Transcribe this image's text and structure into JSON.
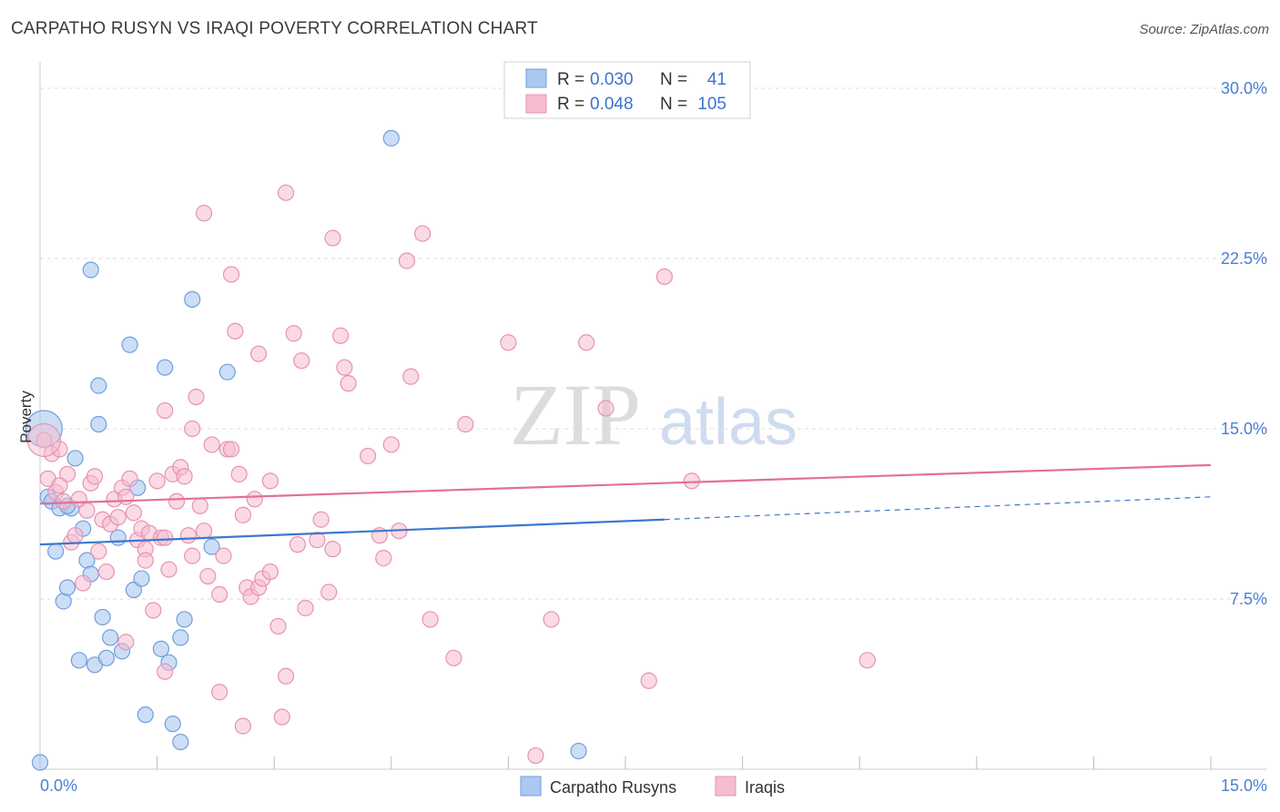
{
  "header": {
    "title": "CARPATHO RUSYN VS IRAQI POVERTY CORRELATION CHART",
    "source": "Source: ZipAtlas.com"
  },
  "watermark": {
    "zip": "ZIP",
    "atlas": "atlas"
  },
  "colors": {
    "blue_fill": "#aac8f0",
    "blue_stroke": "#6f9fdc",
    "blue_line": "#3a78d0",
    "pink_fill": "#f6bcd0",
    "pink_stroke": "#e693b0",
    "pink_line": "#e46f98",
    "tick_label": "#4a7fd4",
    "grid": "#dddddd"
  },
  "chart_data": {
    "type": "scatter",
    "xlabel": "",
    "ylabel": "Poverty",
    "xlim": [
      0,
      15
    ],
    "ylim": [
      0,
      30
    ],
    "x_ticks": [
      0,
      1.5,
      3,
      4.5,
      6,
      7.5,
      9,
      10.5,
      12,
      13.5,
      15
    ],
    "x_tick_labels": [
      {
        "value": 0,
        "label": "0.0%"
      },
      {
        "value": 15,
        "label": "15.0%"
      }
    ],
    "y_tick_labels": [
      {
        "value": 7.5,
        "label": "7.5%"
      },
      {
        "value": 15,
        "label": "15.0%"
      },
      {
        "value": 22.5,
        "label": "22.5%"
      },
      {
        "value": 30,
        "label": "30.0%"
      }
    ],
    "grid": true,
    "legend_position": "top-center",
    "legend": [
      {
        "series": "Carpatho Rusyns",
        "r_label": "R =",
        "r": "0.030",
        "n_label": "N =",
        "n": "41"
      },
      {
        "series": "Iraqis",
        "r_label": "R =",
        "r": "0.048",
        "n_label": "N =",
        "n": "105"
      }
    ],
    "series": [
      {
        "name": "Carpatho Rusyns",
        "color": "#aac8f0",
        "trend": {
          "x0": 0,
          "y0": 9.9,
          "x1": 8.0,
          "y1": 11.0,
          "dash_x1": 15,
          "dash_y1": 12.0
        },
        "points": [
          [
            0.05,
            15.0
          ],
          [
            0.1,
            12.0
          ],
          [
            0.15,
            11.8
          ],
          [
            0.2,
            9.6
          ],
          [
            0.25,
            11.5
          ],
          [
            0.3,
            7.4
          ],
          [
            0.35,
            8.0
          ],
          [
            0.4,
            11.5
          ],
          [
            0.45,
            13.7
          ],
          [
            0.5,
            4.8
          ],
          [
            0.55,
            10.6
          ],
          [
            0.6,
            9.2
          ],
          [
            0.65,
            8.6
          ],
          [
            0.7,
            4.6
          ],
          [
            0.75,
            16.9
          ],
          [
            0.8,
            6.7
          ],
          [
            0.85,
            4.9
          ],
          [
            0.9,
            5.8
          ],
          [
            1.0,
            10.2
          ],
          [
            1.05,
            5.2
          ],
          [
            1.15,
            18.7
          ],
          [
            1.2,
            7.9
          ],
          [
            1.3,
            8.4
          ],
          [
            1.35,
            2.4
          ],
          [
            1.55,
            5.3
          ],
          [
            1.6,
            17.7
          ],
          [
            1.65,
            4.7
          ],
          [
            1.7,
            2.0
          ],
          [
            1.8,
            5.8
          ],
          [
            1.85,
            6.6
          ],
          [
            1.95,
            20.7
          ],
          [
            2.2,
            9.8
          ],
          [
            2.4,
            17.5
          ],
          [
            0.35,
            11.6
          ],
          [
            1.8,
            1.2
          ],
          [
            1.25,
            12.4
          ],
          [
            0.65,
            22.0
          ],
          [
            0.75,
            15.2
          ],
          [
            4.5,
            27.8
          ],
          [
            6.9,
            0.8
          ],
          [
            0.0,
            0.3
          ]
        ]
      },
      {
        "name": "Iraqis",
        "color": "#f6bcd0",
        "trend": {
          "x0": 0,
          "y0": 11.7,
          "x1": 15,
          "y1": 13.4
        },
        "points": [
          [
            0.05,
            14.5
          ],
          [
            0.1,
            12.8
          ],
          [
            0.15,
            13.9
          ],
          [
            0.2,
            12.2
          ],
          [
            0.25,
            14.1
          ],
          [
            0.3,
            11.8
          ],
          [
            0.35,
            13.0
          ],
          [
            0.4,
            10.0
          ],
          [
            0.45,
            10.3
          ],
          [
            0.5,
            11.9
          ],
          [
            0.55,
            8.2
          ],
          [
            0.6,
            11.4
          ],
          [
            0.65,
            12.6
          ],
          [
            0.7,
            12.9
          ],
          [
            0.75,
            9.6
          ],
          [
            0.8,
            11.0
          ],
          [
            0.85,
            8.7
          ],
          [
            0.9,
            10.8
          ],
          [
            0.95,
            11.9
          ],
          [
            1.0,
            11.1
          ],
          [
            1.05,
            12.4
          ],
          [
            1.1,
            12.0
          ],
          [
            1.15,
            12.8
          ],
          [
            1.2,
            11.3
          ],
          [
            1.25,
            10.1
          ],
          [
            1.3,
            10.6
          ],
          [
            1.35,
            9.7
          ],
          [
            1.4,
            10.4
          ],
          [
            1.45,
            7.0
          ],
          [
            1.5,
            12.7
          ],
          [
            1.55,
            10.2
          ],
          [
            1.6,
            10.2
          ],
          [
            1.65,
            8.8
          ],
          [
            1.7,
            13.0
          ],
          [
            1.75,
            11.8
          ],
          [
            1.8,
            13.3
          ],
          [
            1.85,
            12.9
          ],
          [
            1.9,
            10.3
          ],
          [
            1.95,
            9.4
          ],
          [
            2.0,
            16.4
          ],
          [
            2.05,
            11.6
          ],
          [
            2.1,
            10.5
          ],
          [
            2.15,
            8.5
          ],
          [
            2.2,
            14.3
          ],
          [
            2.3,
            7.7
          ],
          [
            2.35,
            9.4
          ],
          [
            2.4,
            14.1
          ],
          [
            2.45,
            14.1
          ],
          [
            2.55,
            13.0
          ],
          [
            2.6,
            11.2
          ],
          [
            2.65,
            8.0
          ],
          [
            2.7,
            7.6
          ],
          [
            2.75,
            11.9
          ],
          [
            2.8,
            8.0
          ],
          [
            2.85,
            8.4
          ],
          [
            2.95,
            8.7
          ],
          [
            3.05,
            6.3
          ],
          [
            3.15,
            4.1
          ],
          [
            3.25,
            19.2
          ],
          [
            3.3,
            9.9
          ],
          [
            3.4,
            7.1
          ],
          [
            3.55,
            10.1
          ],
          [
            3.6,
            11.0
          ],
          [
            3.7,
            7.8
          ],
          [
            3.75,
            9.7
          ],
          [
            3.85,
            19.1
          ],
          [
            3.9,
            17.7
          ],
          [
            3.95,
            17.0
          ],
          [
            4.2,
            13.8
          ],
          [
            4.35,
            10.3
          ],
          [
            4.4,
            9.3
          ],
          [
            4.5,
            14.3
          ],
          [
            4.6,
            10.5
          ],
          [
            4.7,
            22.4
          ],
          [
            4.75,
            17.3
          ],
          [
            4.9,
            23.6
          ],
          [
            5.0,
            6.6
          ],
          [
            5.3,
            4.9
          ],
          [
            5.45,
            15.2
          ],
          [
            6.0,
            18.8
          ],
          [
            6.55,
            6.6
          ],
          [
            7.0,
            18.8
          ],
          [
            7.25,
            15.9
          ],
          [
            7.8,
            3.9
          ],
          [
            8.0,
            21.7
          ],
          [
            8.35,
            12.7
          ],
          [
            10.6,
            4.8
          ],
          [
            2.1,
            24.5
          ],
          [
            3.75,
            23.4
          ],
          [
            3.15,
            25.4
          ],
          [
            2.45,
            21.8
          ],
          [
            1.95,
            15.0
          ],
          [
            1.6,
            15.8
          ],
          [
            2.5,
            19.3
          ],
          [
            2.8,
            18.3
          ],
          [
            3.35,
            18.0
          ],
          [
            2.3,
            3.4
          ],
          [
            2.6,
            1.9
          ],
          [
            3.1,
            2.3
          ],
          [
            2.95,
            12.7
          ],
          [
            1.35,
            9.2
          ],
          [
            6.35,
            0.6
          ],
          [
            0.25,
            12.5
          ],
          [
            1.6,
            4.3
          ],
          [
            1.1,
            5.6
          ]
        ]
      }
    ]
  }
}
